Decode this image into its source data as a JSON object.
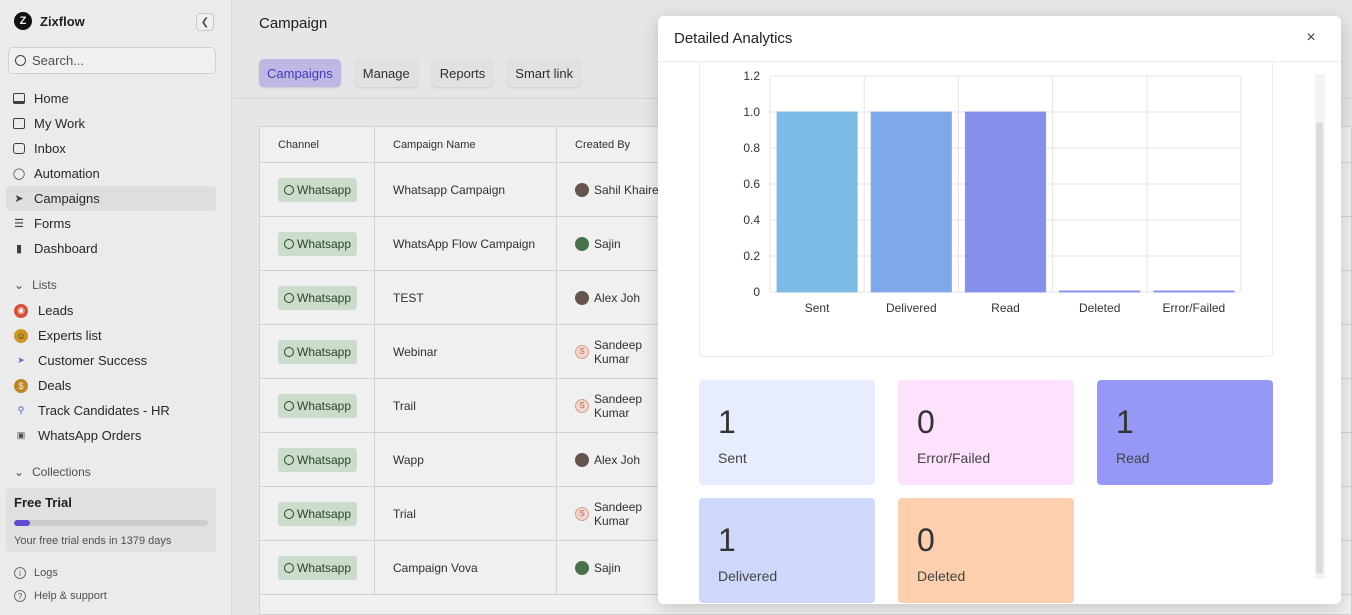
{
  "app": {
    "name": "Zixflow",
    "logo_letter": "Z"
  },
  "sidebar": {
    "search_placeholder": "Search...",
    "nav": [
      {
        "label": "Home",
        "icon": "monitor-icon"
      },
      {
        "label": "My Work",
        "icon": "checklist-icon"
      },
      {
        "label": "Inbox",
        "icon": "inbox-icon"
      },
      {
        "label": "Automation",
        "icon": "lightbulb-icon"
      },
      {
        "label": "Campaigns",
        "icon": "rocket-icon"
      },
      {
        "label": "Forms",
        "icon": "form-icon"
      },
      {
        "label": "Dashboard",
        "icon": "bar-chart-icon"
      }
    ],
    "lists_header": "Lists",
    "lists": [
      {
        "label": "Leads",
        "icon": "target-icon",
        "color": "#e2553f"
      },
      {
        "label": "Experts list",
        "icon": "face-icon",
        "color": "#d9a12a"
      },
      {
        "label": "Customer Success",
        "icon": "rocket-icon",
        "color": "#5a7ad9"
      },
      {
        "label": "Deals",
        "icon": "money-bag-icon",
        "color": "#c9902a"
      },
      {
        "label": "Track Candidates - HR",
        "icon": "magnifier-icon",
        "color": "#3a6ad0"
      },
      {
        "label": "WhatsApp Orders",
        "icon": "cart-icon",
        "color": "#555555"
      }
    ],
    "collections_header": "Collections",
    "trial": {
      "title": "Free Trial",
      "progress": 0.08,
      "text": "Your free trial ends in 1379 days"
    },
    "footer": [
      {
        "label": "Logs",
        "icon": "info-icon"
      },
      {
        "label": "Help & support",
        "icon": "help-icon"
      }
    ]
  },
  "main": {
    "title": "Campaign",
    "tabs": [
      {
        "label": "Campaigns",
        "active": true
      },
      {
        "label": "Manage",
        "active": false
      },
      {
        "label": "Reports",
        "active": false
      },
      {
        "label": "Smart link",
        "active": false
      }
    ],
    "table": {
      "headers": [
        "Channel",
        "Campaign Name",
        "Created By"
      ],
      "rows": [
        {
          "channel": "Whatsapp",
          "name": "Whatsapp Campaign",
          "creator": "Sahil Khaire",
          "avatar": "photo"
        },
        {
          "channel": "Whatsapp",
          "name": "WhatsApp Flow Campaign",
          "creator": "Sajin",
          "avatar": "green"
        },
        {
          "channel": "Whatsapp",
          "name": "TEST",
          "creator": "Alex Joh",
          "avatar": "photo"
        },
        {
          "channel": "Whatsapp",
          "name": "Webinar",
          "creator": "Sandeep Kumar",
          "avatar": "letter"
        },
        {
          "channel": "Whatsapp",
          "name": "Trail",
          "creator": "Sandeep Kumar",
          "avatar": "letter"
        },
        {
          "channel": "Whatsapp",
          "name": "Wapp",
          "creator": "Alex Joh",
          "avatar": "photo"
        },
        {
          "channel": "Whatsapp",
          "name": "Trial",
          "creator": "Sandeep Kumar",
          "avatar": "letter"
        },
        {
          "channel": "Whatsapp",
          "name": "Campaign Vova",
          "creator": "Sajin",
          "avatar": "green"
        }
      ],
      "avatar_letter": "S"
    }
  },
  "modal": {
    "title": "Detailed Analytics",
    "close_symbol": "×",
    "stats": [
      {
        "value": "1",
        "label": "Sent",
        "color": "#e8edfd"
      },
      {
        "value": "0",
        "label": "Error/Failed",
        "color": "#fde2fd"
      },
      {
        "value": "1",
        "label": "Read",
        "color": "#9599f5"
      },
      {
        "value": "1",
        "label": "Delivered",
        "color": "#cdd8fb"
      },
      {
        "value": "0",
        "label": "Deleted",
        "color": "#fdcfae"
      }
    ]
  },
  "chart_data": {
    "type": "bar",
    "categories": [
      "Sent",
      "Delivered",
      "Read",
      "Deleted",
      "Error/Failed"
    ],
    "values": [
      1,
      1,
      1,
      0,
      0
    ],
    "colors": [
      "#7cbbe6",
      "#7ea8ea",
      "#8590ea",
      "#8590ea",
      "#8590ea"
    ],
    "ylim": [
      0,
      1.2
    ],
    "yticks": [
      "0",
      "0.2",
      "0.4",
      "0.6",
      "0.8",
      "1.0",
      "1.2"
    ],
    "grid": true
  }
}
